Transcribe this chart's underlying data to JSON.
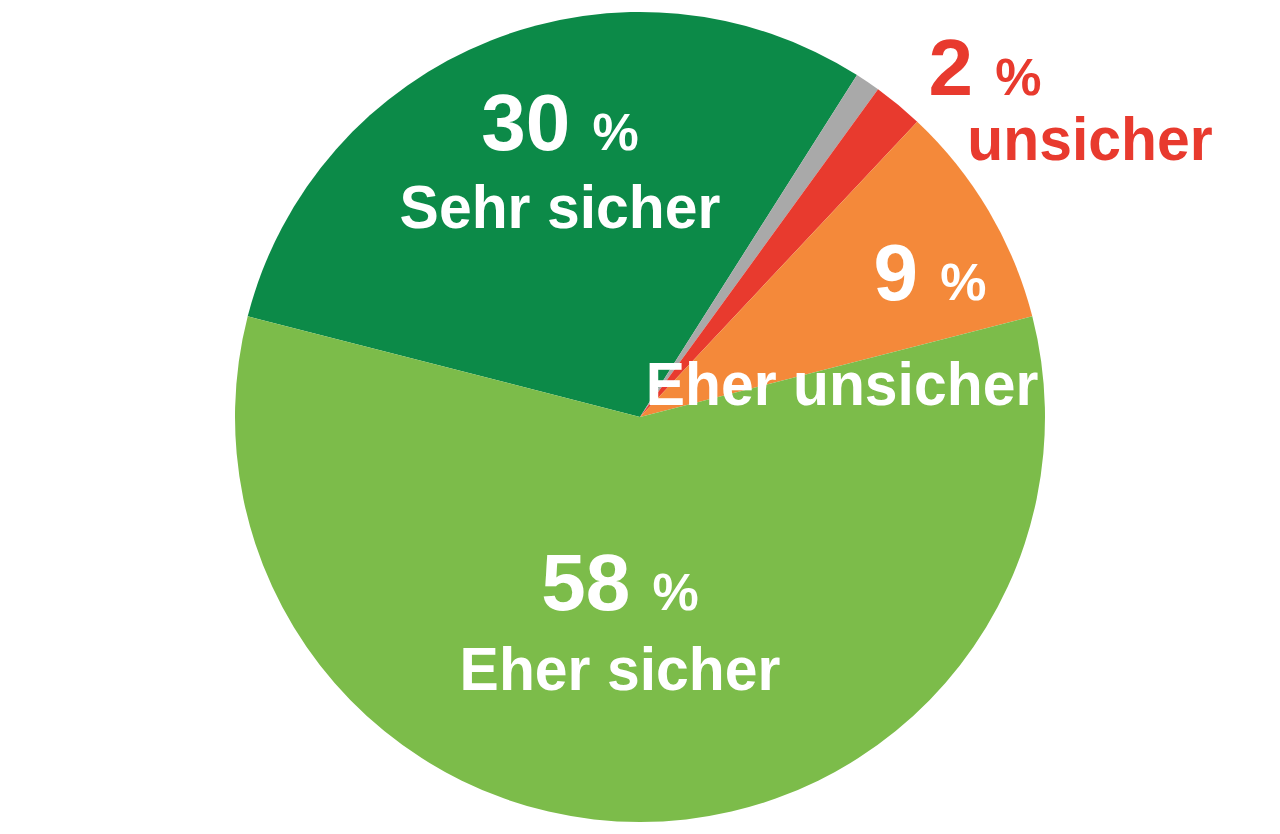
{
  "chart_data": {
    "type": "pie",
    "categories": [
      "Sehr sicher",
      null,
      "unsicher",
      "Eher unsicher",
      "Eher sicher"
    ],
    "values": [
      30,
      1,
      2,
      9,
      58
    ],
    "colors": [
      "#0c8a48",
      "#a9a9a9",
      "#e83a2e",
      "#f4893a",
      "#7cbc4a"
    ],
    "value_labels": [
      "30 %",
      null,
      "2 %",
      "9 %",
      "58 %"
    ]
  }
}
